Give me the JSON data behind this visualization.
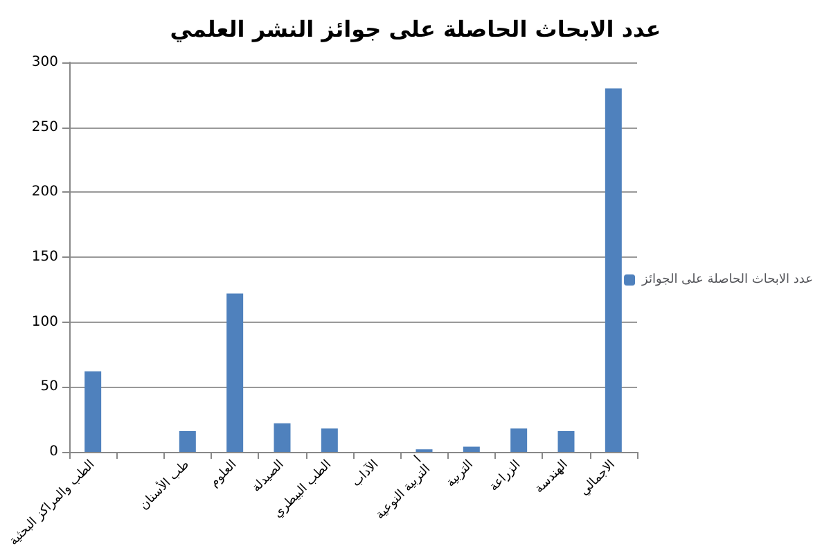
{
  "chart_data": {
    "type": "bar",
    "title": "عدد الابحاث الحاصلة على جوائز النشر العلمي",
    "categories": [
      "الطب والمراكز البحثية",
      null,
      "طب الأسنان",
      "العلوم",
      "الصيدلة",
      "الطب البيطري",
      "الآداب",
      "ا\nالتربية النوعية",
      "التربية",
      "الزراعة",
      "الهندسة",
      "الاجمالي"
    ],
    "series": [
      {
        "name": "عدد الابحاث الحاصلة على الجوائز",
        "color": "#4f81bd",
        "values": [
          62,
          0,
          16,
          122,
          22,
          18,
          0,
          2,
          4,
          18,
          16,
          280
        ]
      }
    ],
    "ylim": [
      0,
      300
    ],
    "yticks": [
      0,
      50,
      100,
      150,
      200,
      250,
      300
    ],
    "grid": "y",
    "legend": "right"
  }
}
